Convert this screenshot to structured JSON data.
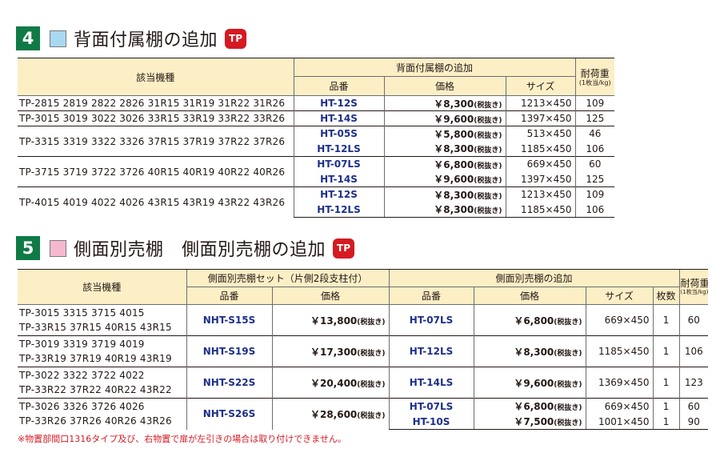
{
  "section4": {
    "number": "4",
    "swatch_color": "#a9d8f2",
    "title": "背面付属棚の追加",
    "badge": "TP",
    "headers": {
      "models": "該当機種",
      "group": "背面付属棚の追加",
      "part": "品番",
      "price": "価格",
      "size": "サイズ",
      "weight": "耐荷重",
      "weight_unit": "(1枚当/kg)"
    },
    "groups": [
      {
        "models": "TP-2815 2819 2822 2826 31R15 31R19 31R22 31R26",
        "items": [
          {
            "part": "HT-12S",
            "price": "￥8,300",
            "tax": "(税抜き)",
            "size": "1213×450",
            "load": "109"
          }
        ]
      },
      {
        "models": "TP-3015 3019 3022 3026 33R15 33R19 33R22 33R26",
        "items": [
          {
            "part": "HT-14S",
            "price": "￥9,600",
            "tax": "(税抜き)",
            "size": "1397×450",
            "load": "125"
          }
        ]
      },
      {
        "models": "TP-3315 3319 3322 3326 37R15 37R19 37R22 37R26",
        "items": [
          {
            "part": "HT-05S",
            "price": "￥5,800",
            "tax": "(税抜き)",
            "size": "513×450",
            "load": "46"
          },
          {
            "part": "HT-12LS",
            "price": "￥8,300",
            "tax": "(税抜き)",
            "size": "1185×450",
            "load": "106"
          }
        ]
      },
      {
        "models": "TP-3715 3719 3722 3726 40R15 40R19 40R22 40R26",
        "items": [
          {
            "part": "HT-07LS",
            "price": "￥6,800",
            "tax": "(税抜き)",
            "size": "669×450",
            "load": "60"
          },
          {
            "part": "HT-14S",
            "price": "￥9,600",
            "tax": "(税抜き)",
            "size": "1397×450",
            "load": "125"
          }
        ]
      },
      {
        "models": "TP-4015 4019 4022 4026 43R15 43R19 43R22 43R26",
        "items": [
          {
            "part": "HT-12S",
            "price": "￥8,300",
            "tax": "(税抜き)",
            "size": "1213×450",
            "load": "109"
          },
          {
            "part": "HT-12LS",
            "price": "￥8,300",
            "tax": "(税抜き)",
            "size": "1185×450",
            "load": "106"
          }
        ]
      }
    ]
  },
  "section5": {
    "number": "5",
    "swatch_color": "#f5b8cf",
    "title": "側面別売棚　側面別売棚の追加",
    "badge": "TP",
    "headers": {
      "models": "該当機種",
      "set_group": "側面別売棚セット（片側2段支柱付）",
      "add_group": "側面別売棚の追加",
      "part": "品番",
      "price": "価格",
      "part2": "品番",
      "price2": "価格",
      "size": "サイズ",
      "count": "枚数",
      "weight": "耐荷重",
      "weight_unit": "(1枚当/kg)"
    },
    "groups": [
      {
        "models": [
          "TP-3015 3315 3715 4015",
          "TP-33R15 37R15 40R15 43R15"
        ],
        "set_part": "NHT-S15S",
        "set_price": "￥13,800",
        "set_tax": "(税抜き)",
        "items": [
          {
            "part": "HT-07LS",
            "price": "￥6,800",
            "tax": "(税抜き)",
            "size": "669×450",
            "count": "1",
            "load": "60"
          }
        ]
      },
      {
        "models": [
          "TP-3019 3319 3719 4019",
          "TP-33R19 37R19 40R19 43R19"
        ],
        "set_part": "NHT-S19S",
        "set_price": "￥17,300",
        "set_tax": "(税抜き)",
        "items": [
          {
            "part": "HT-12LS",
            "price": "￥8,300",
            "tax": "(税抜き)",
            "size": "1185×450",
            "count": "1",
            "load": "106"
          }
        ]
      },
      {
        "models": [
          "TP-3022 3322 3722 4022",
          "TP-33R22 37R22 40R22 43R22"
        ],
        "set_part": "NHT-S22S",
        "set_price": "￥20,400",
        "set_tax": "(税抜き)",
        "items": [
          {
            "part": "HT-14LS",
            "price": "￥9,600",
            "tax": "(税抜き)",
            "size": "1369×450",
            "count": "1",
            "load": "123"
          }
        ]
      },
      {
        "models": [
          "TP-3026 3326 3726 4026",
          "TP-33R26 37R26 40R26 43R26"
        ],
        "set_part": "NHT-S26S",
        "set_price": "￥28,600",
        "set_tax": "(税抜き)",
        "items": [
          {
            "part": "HT-07LS",
            "price": "￥6,800",
            "tax": "(税抜き)",
            "size": "669×450",
            "count": "1",
            "load": "60"
          },
          {
            "part": "HT-10S",
            "price": "￥7,500",
            "tax": "(税抜き)",
            "size": "1001×450",
            "count": "1",
            "load": "90"
          }
        ]
      }
    ]
  },
  "note": "※物置部間口1316タイプ及び、右物置で扉が左引きの場合は取り付けできません。"
}
